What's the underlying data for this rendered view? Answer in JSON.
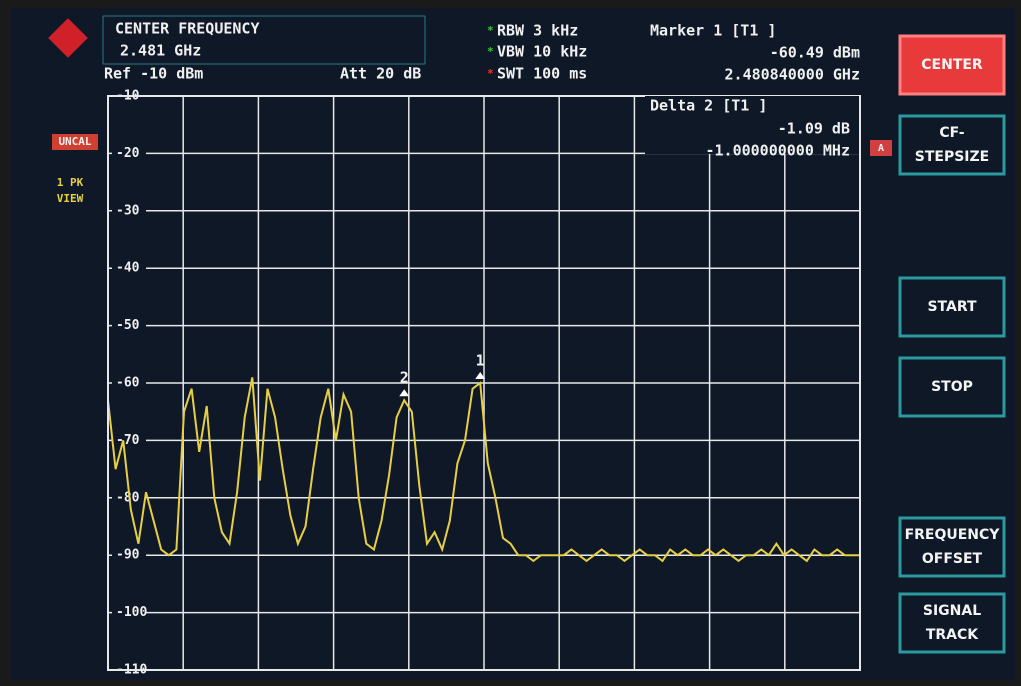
{
  "screen": {
    "header": {
      "center_label": "CENTER FREQUENCY",
      "center_value": "2.481 GHz",
      "ref": "Ref -10 dBm",
      "att": "Att  20 dB",
      "rbw": "RBW 3 kHz",
      "vbw": "VBW 10 kHz",
      "swt": "SWT 100 ms",
      "marker1": "Marker 1 [T1 ]",
      "marker1_level": "-60.49 dBm",
      "marker1_freq": "2.480840000 GHz"
    },
    "delta": {
      "title": "Delta 2 [T1 ]",
      "level": "-1.09 dB",
      "freq": "-1.000000000 MHz"
    },
    "left": {
      "uncal": "UNCAL",
      "trace": "1 PK",
      "mode": "VIEW",
      "trace_tag": "A"
    },
    "marker_labels": [
      "2",
      "1"
    ],
    "softkeys": [
      [
        "CENTER"
      ],
      [
        "CF-",
        "STEPSIZE"
      ],
      [
        "START"
      ],
      [
        "STOP"
      ],
      [
        "FREQUENCY",
        "OFFSET"
      ],
      [
        "SIGNAL",
        "TRACK"
      ]
    ]
  },
  "chart_data": {
    "type": "line",
    "color": "#e6cf45",
    "grid": true,
    "ylim": [
      -110,
      -10
    ],
    "yticks": [
      -10,
      -20,
      -30,
      -40,
      -50,
      -60,
      -70,
      -80,
      -90,
      -100,
      -110
    ],
    "values": [
      -63,
      -75,
      -70,
      -82,
      -88,
      -79,
      -84,
      -89,
      -90,
      -89,
      -65,
      -61,
      -72,
      -64,
      -80,
      -86,
      -88,
      -79,
      -66,
      -59,
      -77,
      -61,
      -66,
      -75,
      -83,
      -88,
      -85,
      -75,
      -66,
      -61,
      -70,
      -62,
      -65,
      -80,
      -88,
      -89,
      -84,
      -76,
      -66,
      -63,
      -65,
      -78,
      -88,
      -86,
      -89,
      -84,
      -74,
      -70,
      -61,
      -60,
      -74,
      -80,
      -87,
      -88,
      -90,
      -90,
      -91,
      -90,
      -90,
      -90,
      -90,
      -89,
      -90,
      -91,
      -90,
      -89,
      -90,
      -90,
      -91,
      -90,
      -89,
      -90,
      -90,
      -91,
      -89,
      -90,
      -89,
      -90,
      -90,
      -89,
      -90,
      -89,
      -90,
      -91,
      -90,
      -90,
      -89,
      -90,
      -88,
      -90,
      -89,
      -90,
      -91,
      -89,
      -90,
      -90,
      -89,
      -90,
      -90,
      -90
    ]
  }
}
